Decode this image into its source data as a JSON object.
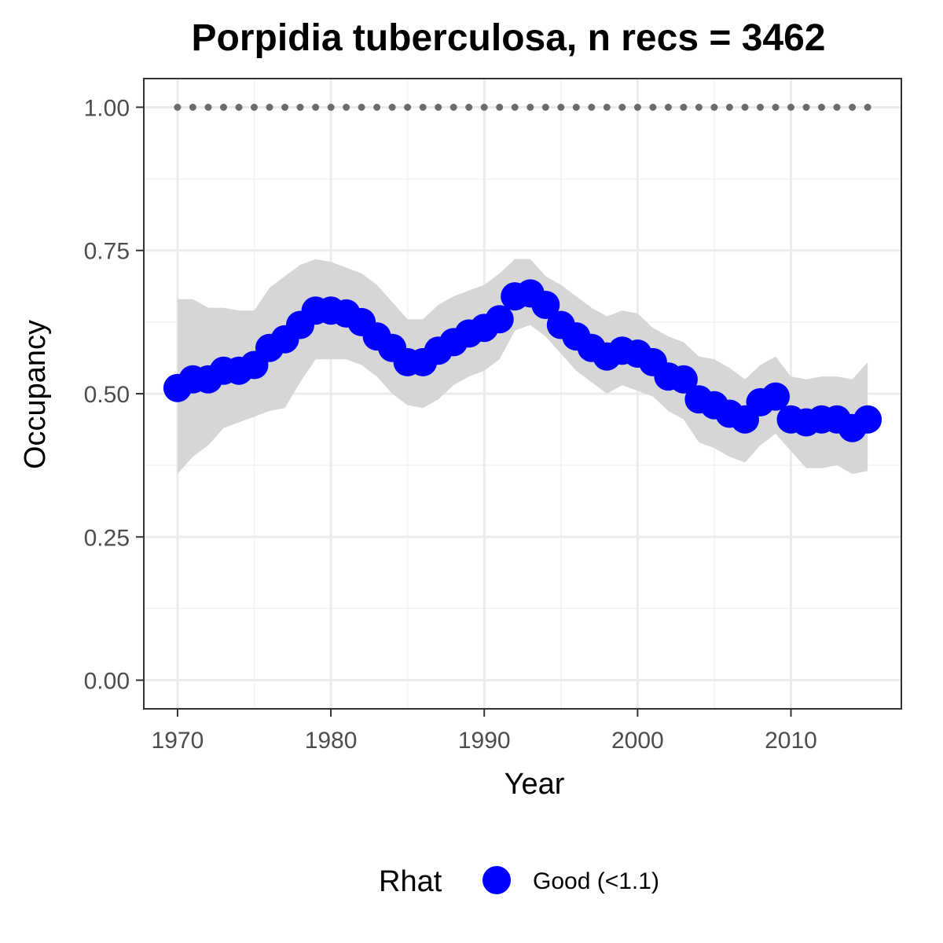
{
  "chart_data": {
    "type": "line",
    "title": "Porpidia tuberculosa, n recs = 3462",
    "xlabel": "Year",
    "ylabel": "Occupancy",
    "xlim": [
      1967.8,
      2017.2
    ],
    "ylim": [
      -0.05,
      1.05
    ],
    "x_ticks": [
      1970,
      1980,
      1990,
      2000,
      2010
    ],
    "x_tick_labels": [
      "1970",
      "1980",
      "1990",
      "2000",
      "2010"
    ],
    "y_ticks": [
      0,
      0.25,
      0.5,
      0.75,
      1.0
    ],
    "y_tick_labels": [
      "0.00",
      "0.25",
      "0.50",
      "0.75",
      "1.00"
    ],
    "grid": true,
    "x": [
      1970,
      1971,
      1972,
      1973,
      1974,
      1975,
      1976,
      1977,
      1978,
      1979,
      1980,
      1981,
      1982,
      1983,
      1984,
      1985,
      1986,
      1987,
      1988,
      1989,
      1990,
      1991,
      1992,
      1993,
      1994,
      1995,
      1996,
      1997,
      1998,
      1999,
      2000,
      2001,
      2002,
      2003,
      2004,
      2005,
      2006,
      2007,
      2008,
      2009,
      2010,
      2011,
      2012,
      2013,
      2014,
      2015
    ],
    "series": [
      {
        "name": "Good (<1.1)",
        "color": "#0000ff",
        "values": [
          0.51,
          0.525,
          0.525,
          0.54,
          0.54,
          0.55,
          0.58,
          0.595,
          0.62,
          0.645,
          0.645,
          0.64,
          0.625,
          0.6,
          0.58,
          0.555,
          0.555,
          0.575,
          0.59,
          0.605,
          0.615,
          0.63,
          0.67,
          0.675,
          0.655,
          0.62,
          0.6,
          0.58,
          0.565,
          0.575,
          0.57,
          0.555,
          0.53,
          0.525,
          0.49,
          0.48,
          0.465,
          0.455,
          0.485,
          0.495,
          0.455,
          0.45,
          0.455,
          0.455,
          0.44,
          0.455
        ],
        "lower": [
          0.36,
          0.39,
          0.41,
          0.44,
          0.45,
          0.46,
          0.47,
          0.475,
          0.52,
          0.56,
          0.56,
          0.56,
          0.55,
          0.53,
          0.5,
          0.48,
          0.475,
          0.49,
          0.515,
          0.53,
          0.54,
          0.56,
          0.61,
          0.62,
          0.6,
          0.57,
          0.54,
          0.52,
          0.5,
          0.515,
          0.505,
          0.495,
          0.47,
          0.455,
          0.415,
          0.405,
          0.39,
          0.38,
          0.41,
          0.43,
          0.4,
          0.37,
          0.37,
          0.375,
          0.36,
          0.365
        ],
        "upper": [
          0.665,
          0.665,
          0.65,
          0.65,
          0.645,
          0.645,
          0.685,
          0.705,
          0.725,
          0.735,
          0.73,
          0.72,
          0.71,
          0.69,
          0.66,
          0.63,
          0.63,
          0.655,
          0.67,
          0.68,
          0.69,
          0.71,
          0.735,
          0.735,
          0.705,
          0.69,
          0.67,
          0.65,
          0.635,
          0.645,
          0.64,
          0.615,
          0.6,
          0.59,
          0.565,
          0.56,
          0.545,
          0.525,
          0.55,
          0.565,
          0.53,
          0.525,
          0.53,
          0.53,
          0.525,
          0.555
        ]
      }
    ],
    "reference_line": {
      "y": 1.0,
      "color": "#6b6b6b"
    },
    "ribbon_color": "#d6d6d6",
    "legend": {
      "title": "Rhat",
      "placement": "bottom",
      "entries": [
        {
          "label": "Good (<1.1)",
          "color": "#0000ff"
        }
      ]
    }
  }
}
